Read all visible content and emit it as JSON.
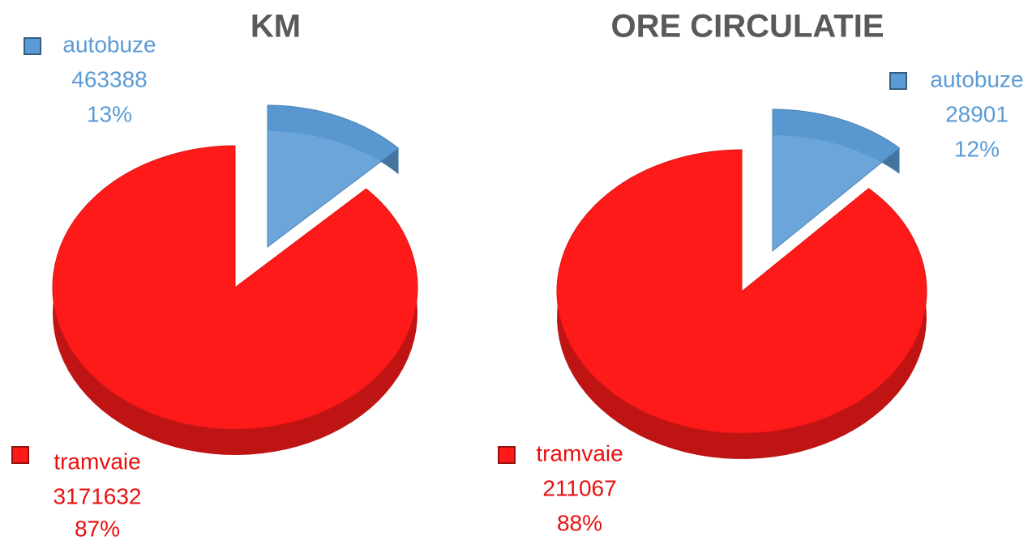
{
  "chart_data": [
    {
      "type": "pie",
      "title": "KM",
      "categories": [
        "autobuze",
        "tramvaie"
      ],
      "values": [
        463388,
        3171632
      ],
      "percent_labels": [
        "13%",
        "87%"
      ],
      "colors": [
        "#5b9bd5",
        "#ff1a1a"
      ]
    },
    {
      "type": "pie",
      "title": "ORE CIRCULATIE",
      "categories": [
        "autobuze",
        "tramvaie"
      ],
      "values": [
        28901,
        211067
      ],
      "percent_labels": [
        "12%",
        "88%"
      ],
      "colors": [
        "#5b9bd5",
        "#ff1a1a"
      ]
    }
  ]
}
